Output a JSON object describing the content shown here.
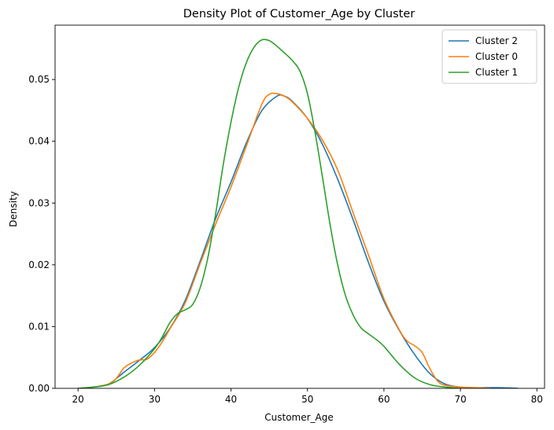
{
  "chart_data": {
    "type": "line",
    "title": "Density Plot of Customer_Age by Cluster",
    "xlabel": "Customer_Age",
    "ylabel": "Density",
    "xlim": [
      17,
      81
    ],
    "ylim": [
      0,
      0.0588
    ],
    "xticks": [
      20,
      30,
      40,
      50,
      60,
      70,
      80
    ],
    "yticks": [
      0.0,
      0.01,
      0.02,
      0.03,
      0.04,
      0.05
    ],
    "ytick_labels": [
      "0.00",
      "0.01",
      "0.02",
      "0.03",
      "0.04",
      "0.05"
    ],
    "grid": false,
    "legend_position": "top-right",
    "series": [
      {
        "name": "Cluster 2",
        "color": "#1f77b4",
        "points": [
          [
            20,
            0
          ],
          [
            22,
            0.0002
          ],
          [
            24,
            0.0007
          ],
          [
            26,
            0.0026
          ],
          [
            28,
            0.0045
          ],
          [
            30,
            0.0066
          ],
          [
            32,
            0.0097
          ],
          [
            34,
            0.0142
          ],
          [
            36,
            0.0207
          ],
          [
            38,
            0.0275
          ],
          [
            40,
            0.0334
          ],
          [
            42,
            0.0397
          ],
          [
            44,
            0.0449
          ],
          [
            46,
            0.0473
          ],
          [
            47,
            0.0473
          ],
          [
            48,
            0.0465
          ],
          [
            50,
            0.0437
          ],
          [
            52,
            0.0394
          ],
          [
            54,
            0.0337
          ],
          [
            56,
            0.0272
          ],
          [
            58,
            0.0203
          ],
          [
            60,
            0.0141
          ],
          [
            62,
            0.0094
          ],
          [
            64,
            0.0055
          ],
          [
            66,
            0.0024
          ],
          [
            68,
            0.0007
          ],
          [
            70,
            0.0002
          ],
          [
            72,
            0.0001
          ],
          [
            75,
            0.0001
          ],
          [
            77.6,
            0
          ]
        ]
      },
      {
        "name": "Cluster 0",
        "color": "#ff7f0e",
        "points": [
          [
            20,
            0
          ],
          [
            22,
            0.0002
          ],
          [
            24,
            0.0007
          ],
          [
            25,
            0.0016
          ],
          [
            26,
            0.0033
          ],
          [
            27,
            0.0041
          ],
          [
            28,
            0.0046
          ],
          [
            29,
            0.0047
          ],
          [
            30,
            0.0058
          ],
          [
            31,
            0.0075
          ],
          [
            32,
            0.0096
          ],
          [
            34,
            0.0138
          ],
          [
            36,
            0.0203
          ],
          [
            38,
            0.0266
          ],
          [
            40,
            0.0326
          ],
          [
            42,
            0.0392
          ],
          [
            44,
            0.0459
          ],
          [
            45,
            0.0476
          ],
          [
            46,
            0.0477
          ],
          [
            47,
            0.0473
          ],
          [
            48,
            0.0464
          ],
          [
            50,
            0.0437
          ],
          [
            52,
            0.0401
          ],
          [
            54,
            0.0352
          ],
          [
            56,
            0.0283
          ],
          [
            58,
            0.0215
          ],
          [
            60,
            0.0145
          ],
          [
            62,
            0.0095
          ],
          [
            63,
            0.0077
          ],
          [
            64,
            0.0069
          ],
          [
            65,
            0.0058
          ],
          [
            66,
            0.0032
          ],
          [
            67,
            0.0012
          ],
          [
            68,
            0.0005
          ],
          [
            70,
            0.0002
          ],
          [
            72,
            0.0001
          ],
          [
            74,
            0
          ]
        ]
      },
      {
        "name": "Cluster 1",
        "color": "#2ca02c",
        "points": [
          [
            20,
            0
          ],
          [
            22,
            0.0002
          ],
          [
            24,
            0.0006
          ],
          [
            26,
            0.0018
          ],
          [
            28,
            0.0037
          ],
          [
            30,
            0.0064
          ],
          [
            31,
            0.0083
          ],
          [
            32,
            0.0106
          ],
          [
            33,
            0.0121
          ],
          [
            34,
            0.0127
          ],
          [
            35,
            0.0136
          ],
          [
            36,
            0.0164
          ],
          [
            37,
            0.0213
          ],
          [
            38,
            0.0283
          ],
          [
            39,
            0.0363
          ],
          [
            40,
            0.0431
          ],
          [
            41,
            0.0487
          ],
          [
            42,
            0.0527
          ],
          [
            43,
            0.0552
          ],
          [
            44,
            0.0564
          ],
          [
            45,
            0.0563
          ],
          [
            46,
            0.0554
          ],
          [
            47,
            0.0543
          ],
          [
            48,
            0.0531
          ],
          [
            49,
            0.0514
          ],
          [
            50,
            0.0477
          ],
          [
            51,
            0.0414
          ],
          [
            52,
            0.0339
          ],
          [
            53,
            0.0262
          ],
          [
            54,
            0.0197
          ],
          [
            55,
            0.0149
          ],
          [
            56,
            0.0118
          ],
          [
            57,
            0.0098
          ],
          [
            58,
            0.0088
          ],
          [
            59,
            0.0079
          ],
          [
            60,
            0.0068
          ],
          [
            62,
            0.0039
          ],
          [
            64,
            0.0017
          ],
          [
            66,
            0.0006
          ],
          [
            68,
            0.0002
          ],
          [
            70,
            0
          ]
        ]
      }
    ]
  }
}
